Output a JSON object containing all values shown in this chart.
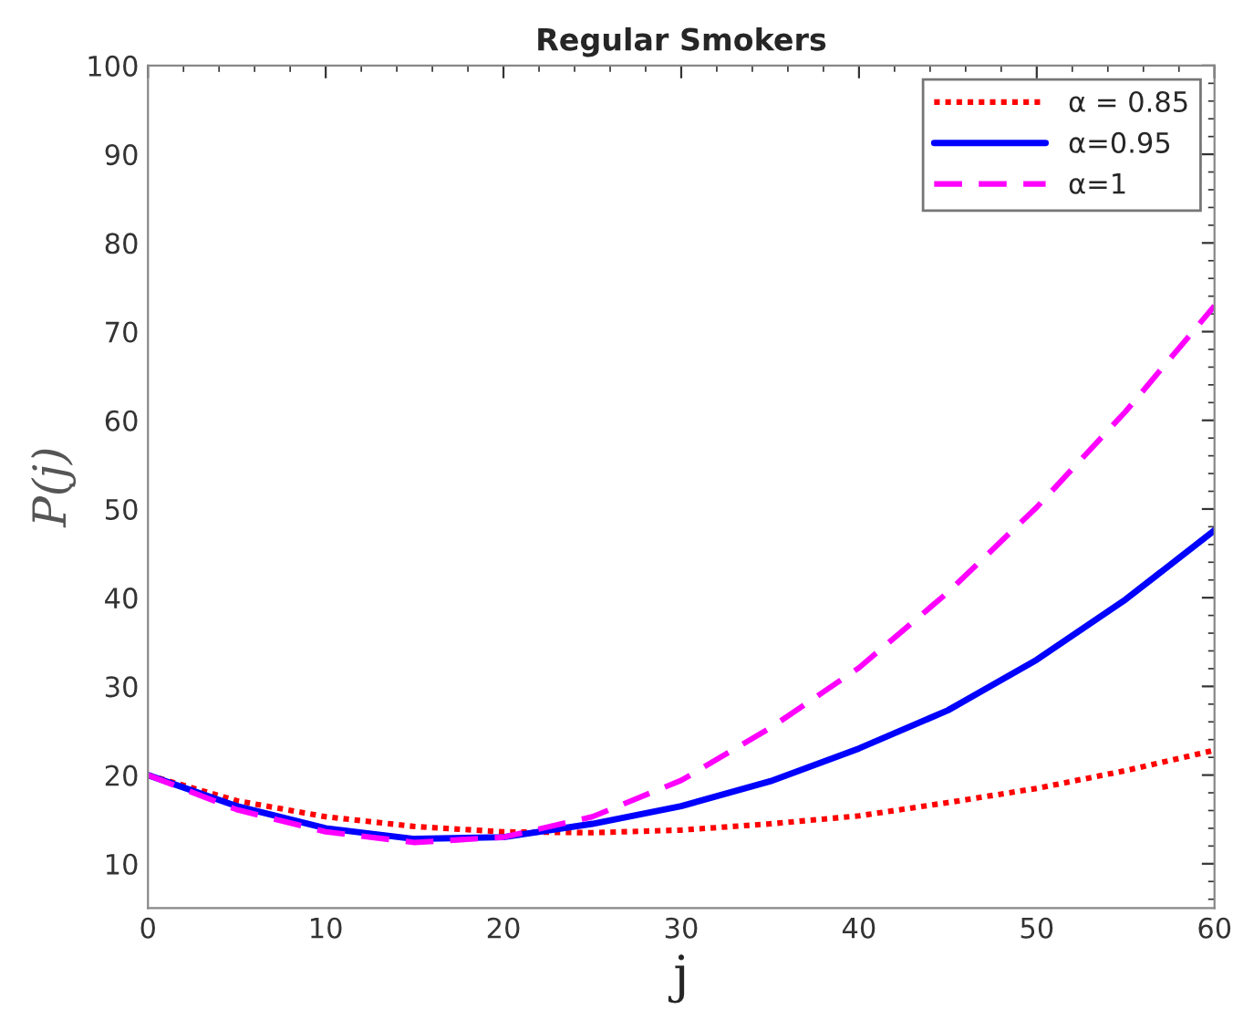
{
  "chart_data": {
    "type": "line",
    "title": "Regular Smokers",
    "xlabel": "j",
    "ylabel": "P(j)",
    "x": [
      0,
      5,
      10,
      15,
      20,
      25,
      30,
      35,
      40,
      45,
      50,
      55,
      60
    ],
    "series": [
      {
        "name": "α = 0.85",
        "color": "#ff0000",
        "line_style": "dotted",
        "values": [
          20,
          17.1,
          15.3,
          14.2,
          13.6,
          13.5,
          13.8,
          14.5,
          15.4,
          16.9,
          18.5,
          20.5,
          22.8
        ]
      },
      {
        "name": "α=0.95",
        "color": "#0000ff",
        "line_style": "solid",
        "values": [
          20,
          16.5,
          14,
          12.8,
          13,
          14.5,
          16.5,
          19.3,
          23,
          27.3,
          33,
          39.8,
          47.6
        ]
      },
      {
        "name": "α=1",
        "color": "#ff00ff",
        "line_style": "dashed",
        "values": [
          20,
          16.1,
          13.6,
          12.4,
          13,
          15.3,
          19.4,
          25.3,
          32.1,
          40.6,
          50.2,
          61,
          72.9
        ]
      }
    ],
    "xlim": [
      0,
      60
    ],
    "ylim": [
      5,
      100
    ],
    "xticks": [
      0,
      10,
      20,
      30,
      40,
      50,
      60
    ],
    "yticks": [
      10,
      20,
      30,
      40,
      50,
      60,
      70,
      80,
      90,
      100
    ],
    "grid": false,
    "legend": "top right"
  }
}
